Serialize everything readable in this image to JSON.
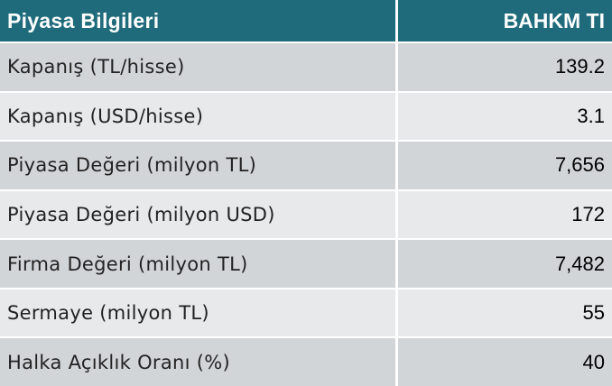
{
  "header": {
    "title": "Piyasa Bilgileri",
    "column": "BAHKM TI"
  },
  "table": {
    "rows": [
      [
        "Kapanış (TL/hisse)",
        "139.2"
      ],
      [
        "Kapanış (USD/hisse)",
        "3.1"
      ],
      [
        "Piyasa Değeri (milyon TL)",
        "7,656"
      ],
      [
        "Piyasa Değeri (milyon USD)",
        "172"
      ],
      [
        "Firma Değeri (milyon TL)",
        "7,482"
      ],
      [
        "Sermaye (milyon TL)",
        "55"
      ],
      [
        "Halka Açıklık Oranı (%)",
        "40"
      ]
    ]
  }
}
